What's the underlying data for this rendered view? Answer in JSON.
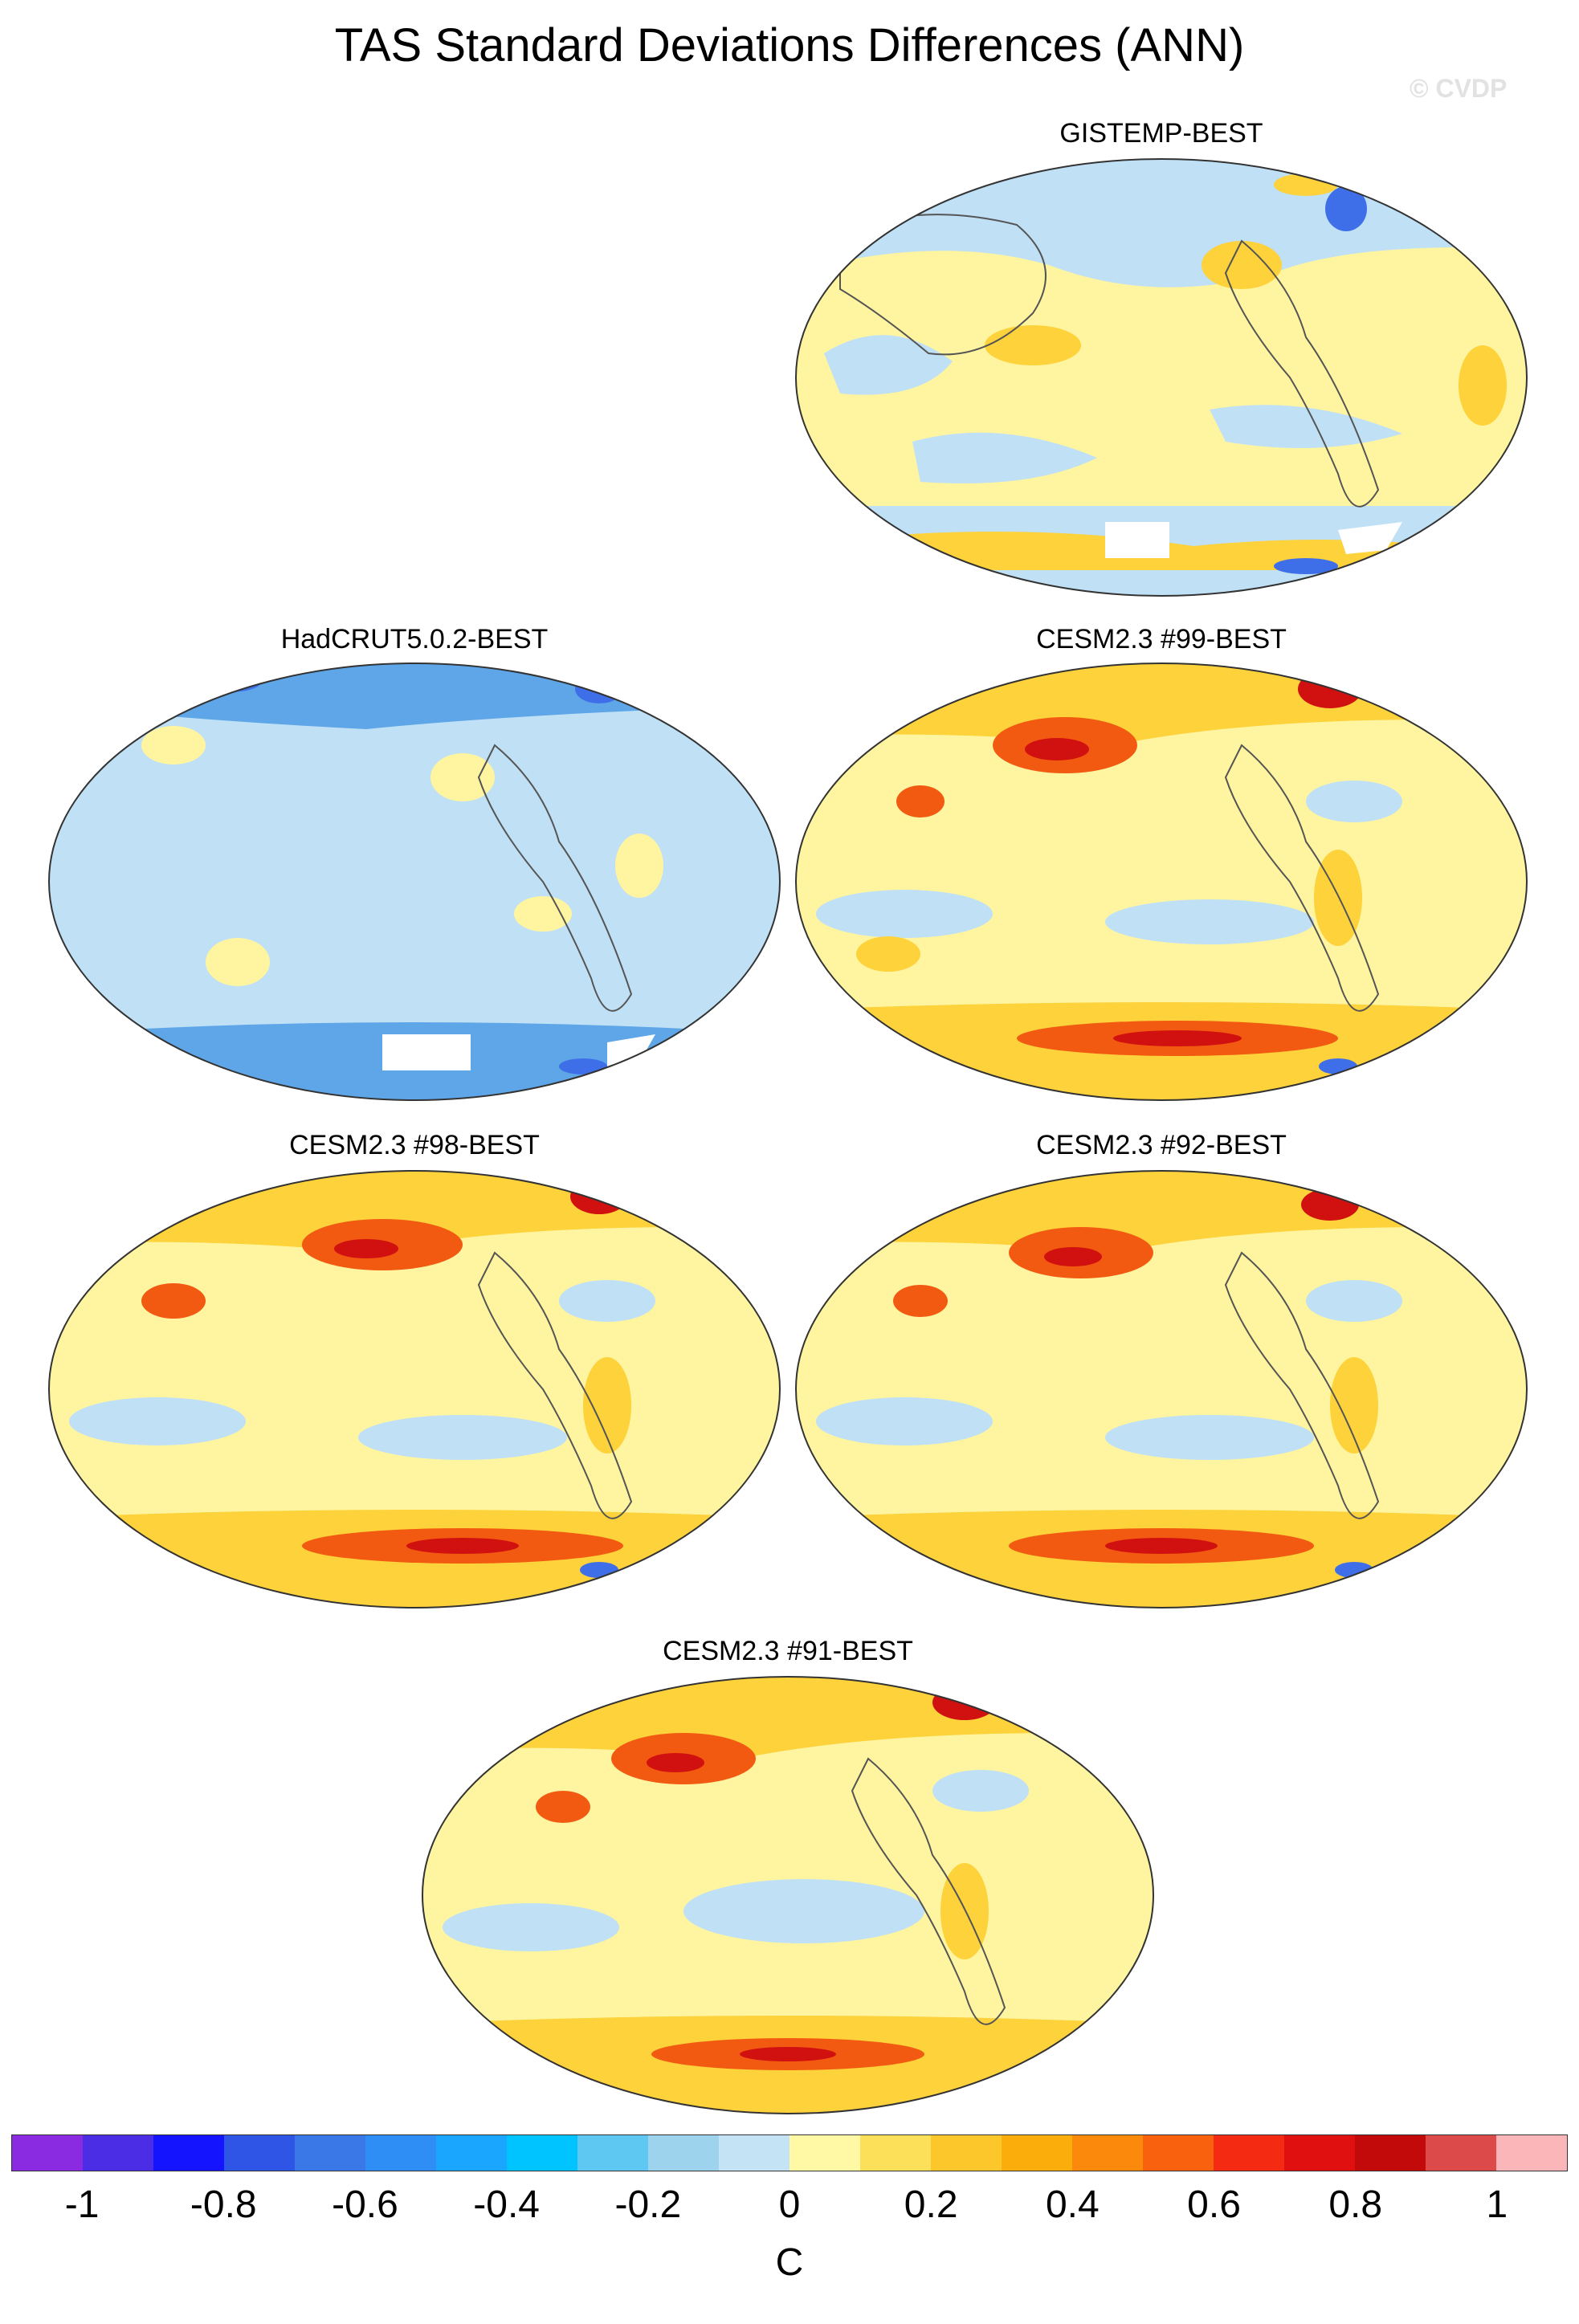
{
  "title": "TAS Standard Deviations Differences (ANN)",
  "watermark": "© CVDP",
  "colors": {
    "neg_strong": "#3f6fe8",
    "neg_light": "#bfe0f5",
    "pos_light": "#fff5a0",
    "pos_medium": "#fdd23a",
    "pos_strong": "#f25a12",
    "pos_max": "#d11010",
    "missing": "#ffffff",
    "coast": "#555555"
  },
  "panels": [
    {
      "label": "GISTEMP-BEST",
      "dominant": "mixed-yellow-blue",
      "min_value": "-0.8",
      "max_value": "0.3"
    },
    {
      "label": "HadCRUT5.0.2-BEST",
      "dominant": "light-blue",
      "min_value": "-1",
      "max_value": "0.1"
    },
    {
      "label": "CESM2.3 #99-BEST",
      "dominant": "yellow-red",
      "min_value": "-0.6",
      "max_value": "1"
    },
    {
      "label": "CESM2.3 #98-BEST",
      "dominant": "yellow-red",
      "min_value": "-0.6",
      "max_value": "1"
    },
    {
      "label": "CESM2.3 #92-BEST",
      "dominant": "yellow-red",
      "min_value": "-0.6",
      "max_value": "1"
    },
    {
      "label": "CESM2.3 #91-BEST",
      "dominant": "yellow-red",
      "min_value": "-0.4",
      "max_value": "1"
    }
  ],
  "colorbar": {
    "label": "C",
    "ticks": [
      "-1",
      "-0.8",
      "-0.6",
      "-0.4",
      "-0.2",
      "0",
      "0.2",
      "0.4",
      "0.6",
      "0.8",
      "1"
    ],
    "colors": [
      "#8a2be2",
      "#4b2de6",
      "#1414ff",
      "#2f55e6",
      "#3a78e8",
      "#2e8ef5",
      "#1aa6ff",
      "#00c4ff",
      "#5ec8f2",
      "#9ed3ee",
      "#c4e4f6",
      "#fff9a6",
      "#fde05a",
      "#fcc72b",
      "#fbad0c",
      "#fb8a0c",
      "#f9610f",
      "#f52a12",
      "#e01010",
      "#c20a0a",
      "#dd4a4a",
      "#fbb6b9"
    ]
  }
}
